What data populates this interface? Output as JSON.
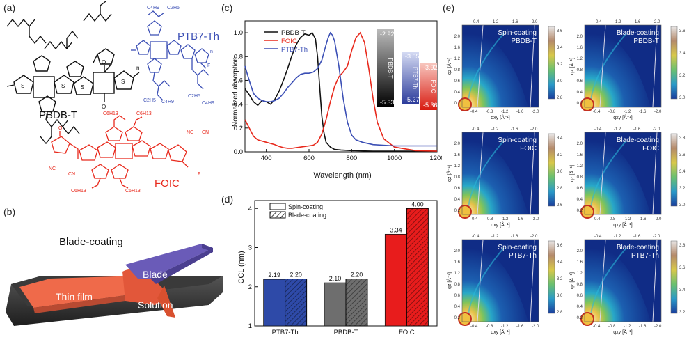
{
  "panels": {
    "a": "(a)",
    "b": "(b)",
    "c": "(c)",
    "d": "(d)",
    "e": "(e)"
  },
  "molecules": {
    "pbdbt": "PBDB-T",
    "ptb7th": "PTB7-Th",
    "foic": "FOIC",
    "sub_c4h9": "C4H9",
    "sub_c2h5": "C2H5",
    "sub_c6h13": "C6H13",
    "atom_s": "S",
    "atom_o": "O",
    "atom_f": "F",
    "atom_nc": "NC",
    "atom_cn": "CN",
    "atom_n": "n"
  },
  "schematic": {
    "title": "Blade-coating",
    "blade": "Blade",
    "film": "Thin film",
    "solution": "Solution"
  },
  "colors": {
    "pbdbt": "#111111",
    "foic": "#e8291c",
    "ptb7th": "#3b4fb5",
    "blade": "#6a5bb8",
    "film": "#ef6a4a",
    "bar_ptb7": "#2e4aa8",
    "bar_pbdb": "#6e6e6e",
    "bar_foic": "#e81c1c"
  },
  "chart_data": [
    {
      "type": "line",
      "title": "",
      "xlabel": "Wavelength (nm)",
      "ylabel": "Normalized absorption",
      "xlim": [
        300,
        1200
      ],
      "ylim": [
        0,
        1.1
      ],
      "xticks": [
        400,
        600,
        800,
        1000,
        1200
      ],
      "yticks": [
        0.0,
        0.2,
        0.4,
        0.6,
        0.8,
        1.0
      ],
      "series": [
        {
          "name": "PBDB-T",
          "x": [
            300,
            320,
            340,
            360,
            380,
            400,
            420,
            440,
            460,
            480,
            500,
            520,
            540,
            560,
            580,
            600,
            615,
            630,
            640,
            650,
            660,
            670,
            680,
            700,
            720,
            750,
            800,
            900,
            1000,
            1100,
            1200
          ],
          "y": [
            0.53,
            0.48,
            0.42,
            0.39,
            0.43,
            0.42,
            0.4,
            0.44,
            0.51,
            0.6,
            0.7,
            0.81,
            0.9,
            0.96,
            0.99,
            0.98,
            1.0,
            0.95,
            0.8,
            0.55,
            0.3,
            0.16,
            0.08,
            0.04,
            0.02,
            0.015,
            0.01,
            0.005,
            0.005,
            0.005,
            0.005
          ]
        },
        {
          "name": "FOIC",
          "x": [
            300,
            320,
            340,
            360,
            380,
            400,
            420,
            440,
            460,
            480,
            500,
            520,
            540,
            560,
            580,
            600,
            620,
            640,
            660,
            680,
            700,
            720,
            740,
            760,
            780,
            800,
            820,
            840,
            860,
            880,
            900,
            920,
            950,
            1000,
            1100,
            1200
          ],
          "y": [
            0.27,
            0.2,
            0.13,
            0.1,
            0.09,
            0.08,
            0.07,
            0.06,
            0.045,
            0.035,
            0.03,
            0.03,
            0.035,
            0.04,
            0.045,
            0.05,
            0.055,
            0.08,
            0.15,
            0.27,
            0.42,
            0.55,
            0.63,
            0.67,
            0.72,
            0.85,
            0.96,
            1.0,
            0.92,
            0.7,
            0.45,
            0.25,
            0.11,
            0.04,
            0.01,
            0.005
          ]
        },
        {
          "name": "PTB7-Th",
          "x": [
            300,
            320,
            340,
            360,
            380,
            400,
            420,
            440,
            460,
            480,
            500,
            520,
            540,
            560,
            580,
            600,
            620,
            640,
            660,
            680,
            690,
            700,
            710,
            720,
            740,
            760,
            780,
            800,
            820,
            850,
            900,
            1000,
            1100,
            1200
          ],
          "y": [
            0.72,
            0.6,
            0.49,
            0.45,
            0.43,
            0.42,
            0.42,
            0.43,
            0.45,
            0.49,
            0.54,
            0.58,
            0.62,
            0.65,
            0.66,
            0.66,
            0.67,
            0.7,
            0.77,
            0.9,
            0.96,
            1.0,
            0.98,
            0.93,
            0.72,
            0.45,
            0.25,
            0.14,
            0.1,
            0.08,
            0.06,
            0.05,
            0.05,
            0.05
          ]
        }
      ],
      "energy_levels": [
        {
          "name": "PBDB-T",
          "homo": "-5.33",
          "lumo": "-2.92"
        },
        {
          "name": "PTB7-Th",
          "homo": "-5.27",
          "lumo": "-3.55"
        },
        {
          "name": "FOIC",
          "homo": "-5.36",
          "lumo": "-3.92"
        }
      ]
    },
    {
      "type": "bar",
      "title": "",
      "xlabel": "",
      "ylabel": "CCL (nm)",
      "ylim": [
        1,
        4.2
      ],
      "yticks": [
        1,
        2,
        3,
        4
      ],
      "categories": [
        "PTB7-Th",
        "PBDB-T",
        "FOIC"
      ],
      "series": [
        {
          "name": "Spin-coating",
          "values": [
            2.19,
            2.1,
            3.34
          ]
        },
        {
          "name": "Blade-coating",
          "values": [
            2.2,
            2.2,
            4.0
          ]
        }
      ],
      "value_labels": [
        [
          "2.19",
          "2.20"
        ],
        [
          "2.10",
          "2.20"
        ],
        [
          "3.34",
          "4.00"
        ]
      ]
    },
    {
      "type": "heatmap",
      "xlabel": "qxy [Å⁻¹]",
      "ylabel": "qz [Å⁻¹]",
      "xticks_top": [
        "-0.4",
        "-1.2",
        "-1.6",
        "-2.0"
      ],
      "xticks_bottom": [
        "-0.4",
        "-0.8",
        "-1.2",
        "-1.6",
        "-2.0"
      ],
      "yticks": [
        "0.2",
        "0.4",
        "0.6",
        "0.8",
        "1.2",
        "1.6",
        "2.0"
      ],
      "maps": [
        {
          "method": "Spin-coating",
          "material": "PBDB-T",
          "scale": [
            "3.6",
            "3.4",
            "3.2",
            "3.0",
            "2.8"
          ]
        },
        {
          "method": "Blade-coating",
          "material": "PBDB-T",
          "scale": [
            "3.6",
            "3.4",
            "3.2",
            "3.0"
          ]
        },
        {
          "method": "Spin-coating",
          "material": "FOIC",
          "scale": [
            "3.4",
            "3.2",
            "3.0",
            "2.8",
            "2.6"
          ]
        },
        {
          "method": "Blade-coating",
          "material": "FOIC",
          "scale": [
            "3.8",
            "3.6",
            "3.4",
            "3.2",
            "3.0"
          ]
        },
        {
          "method": "Spin-coating",
          "material": "PTB7-Th",
          "scale": [
            "3.6",
            "3.4",
            "3.2",
            "3.0",
            "2.8"
          ]
        },
        {
          "method": "Blade-coating",
          "material": "PTB7-Th",
          "scale": [
            "3.8",
            "3.6",
            "3.4",
            "3.2"
          ]
        }
      ]
    }
  ]
}
